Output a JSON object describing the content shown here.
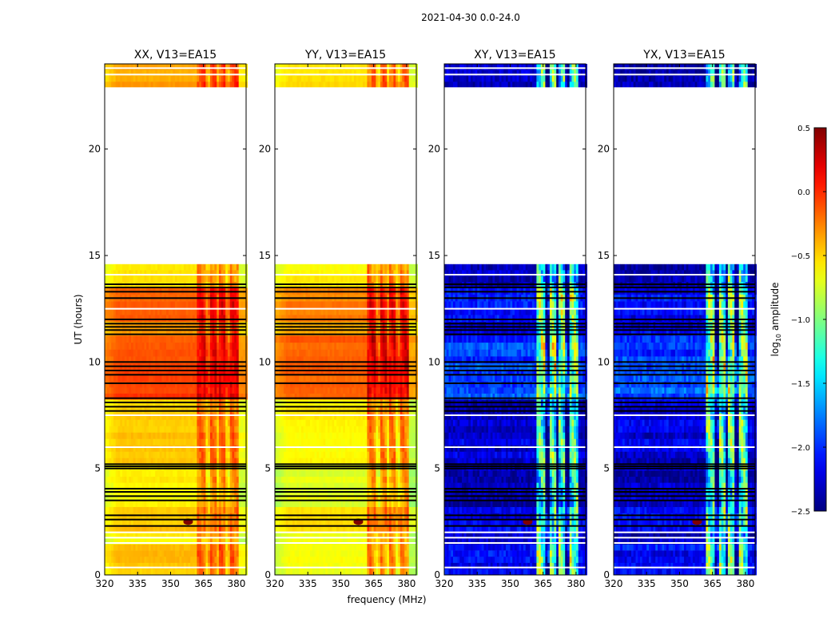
{
  "chart_data": {
    "type": "heatmap",
    "suptitle": "2021-04-30 0.0-24.0",
    "xlabel": "frequency (MHz)",
    "ylabel": "UT (hours)",
    "xlim": [
      320,
      384.4
    ],
    "ylim": [
      0,
      24
    ],
    "xticks": [
      "320",
      "335",
      "350",
      "365",
      "380"
    ],
    "xtick_values": [
      320,
      335,
      350,
      365,
      380
    ],
    "yticks": [
      "0",
      "5",
      "10",
      "15",
      "20"
    ],
    "ytick_values": [
      0,
      5,
      10,
      15,
      20
    ],
    "colorbar": {
      "label_prefix": "log",
      "label_sub": "10",
      "label_suffix": " amplitude",
      "range": [
        -2.5,
        0.5
      ],
      "ticks": [
        "0.5",
        "0.0",
        "−0.5",
        "−1.0",
        "−1.5",
        "−2.0",
        "−2.5"
      ],
      "tick_values": [
        0.5,
        0.0,
        -0.5,
        -1.0,
        -1.5,
        -2.0,
        -2.5
      ],
      "colormap": "jet"
    },
    "band_region_mhz": [
      362,
      381
    ],
    "band_gaps_mhz": [
      367,
      371.5,
      376
    ],
    "flagged_black_ut": [
      2.3,
      2.6,
      2.8,
      3.5,
      3.7,
      3.9,
      4.05,
      5.0,
      5.1,
      5.2,
      7.7,
      7.9,
      8.1,
      8.3,
      9.0,
      9.4,
      9.6,
      9.8,
      10.0,
      11.3,
      11.5,
      11.65,
      11.8,
      12.0,
      13.0,
      13.3,
      13.5,
      13.65
    ],
    "flagged_white_ut": [
      0.35,
      1.5,
      1.75,
      2.0,
      6.0,
      7.5,
      12.5,
      14.1,
      23.5,
      23.8
    ],
    "no_data_ut": [
      14.6,
      22.9
    ],
    "panels": [
      {
        "title": "XX, V13=EA15",
        "band_boost": 0.35,
        "segments": [
          [
            0,
            1.45,
            -0.45
          ],
          [
            1.45,
            2.05,
            -0.6
          ],
          [
            2.05,
            3.2,
            -0.45
          ],
          [
            3.2,
            5.2,
            -0.6
          ],
          [
            5.2,
            7.6,
            -0.45
          ],
          [
            7.6,
            8.25,
            -0.5
          ],
          [
            8.25,
            9.95,
            -0.05
          ],
          [
            9.95,
            11.25,
            -0.1
          ],
          [
            11.25,
            11.9,
            -0.3
          ],
          [
            11.9,
            13.5,
            -0.15
          ],
          [
            13.5,
            14.6,
            -0.55
          ],
          [
            22.9,
            24,
            -0.35
          ]
        ]
      },
      {
        "title": "YY, V13=EA15",
        "band_boost": 0.45,
        "segments": [
          [
            0,
            1.45,
            -0.65
          ],
          [
            1.45,
            2.05,
            -0.7
          ],
          [
            2.05,
            3.2,
            -0.55
          ],
          [
            3.2,
            5.2,
            -0.7
          ],
          [
            5.2,
            7.6,
            -0.6
          ],
          [
            7.6,
            8.25,
            -0.6
          ],
          [
            8.25,
            9.95,
            -0.15
          ],
          [
            9.95,
            11.25,
            -0.15
          ],
          [
            11.25,
            11.9,
            -0.35
          ],
          [
            11.9,
            13.5,
            -0.25
          ],
          [
            13.5,
            14.6,
            -0.6
          ],
          [
            22.9,
            24,
            -0.55
          ]
        ]
      },
      {
        "title": "XY, V13=EA15",
        "band_boost": 1.3,
        "segments": [
          [
            0,
            1.45,
            -2.1
          ],
          [
            1.45,
            2.05,
            -2.3
          ],
          [
            2.05,
            3.2,
            -2.2
          ],
          [
            3.2,
            5.2,
            -2.35
          ],
          [
            5.2,
            7.6,
            -2.25
          ],
          [
            7.6,
            8.25,
            -2.3
          ],
          [
            8.25,
            9.95,
            -1.9
          ],
          [
            9.95,
            11.25,
            -1.95
          ],
          [
            11.25,
            11.9,
            -2.2
          ],
          [
            11.9,
            13.5,
            -2.15
          ],
          [
            13.5,
            14.6,
            -2.3
          ],
          [
            22.9,
            24,
            -2.3
          ]
        ]
      },
      {
        "title": "YX, V13=EA15",
        "band_boost": 1.3,
        "segments": [
          [
            0,
            1.45,
            -2.1
          ],
          [
            1.45,
            2.05,
            -2.3
          ],
          [
            2.05,
            3.2,
            -2.2
          ],
          [
            3.2,
            5.2,
            -2.35
          ],
          [
            5.2,
            7.6,
            -2.25
          ],
          [
            7.6,
            8.25,
            -2.3
          ],
          [
            8.25,
            9.95,
            -1.9
          ],
          [
            9.95,
            11.25,
            -1.95
          ],
          [
            11.25,
            11.9,
            -2.2
          ],
          [
            11.9,
            13.5,
            -2.15
          ],
          [
            13.5,
            14.6,
            -2.3
          ],
          [
            22.9,
            24,
            -2.3
          ]
        ]
      }
    ]
  }
}
